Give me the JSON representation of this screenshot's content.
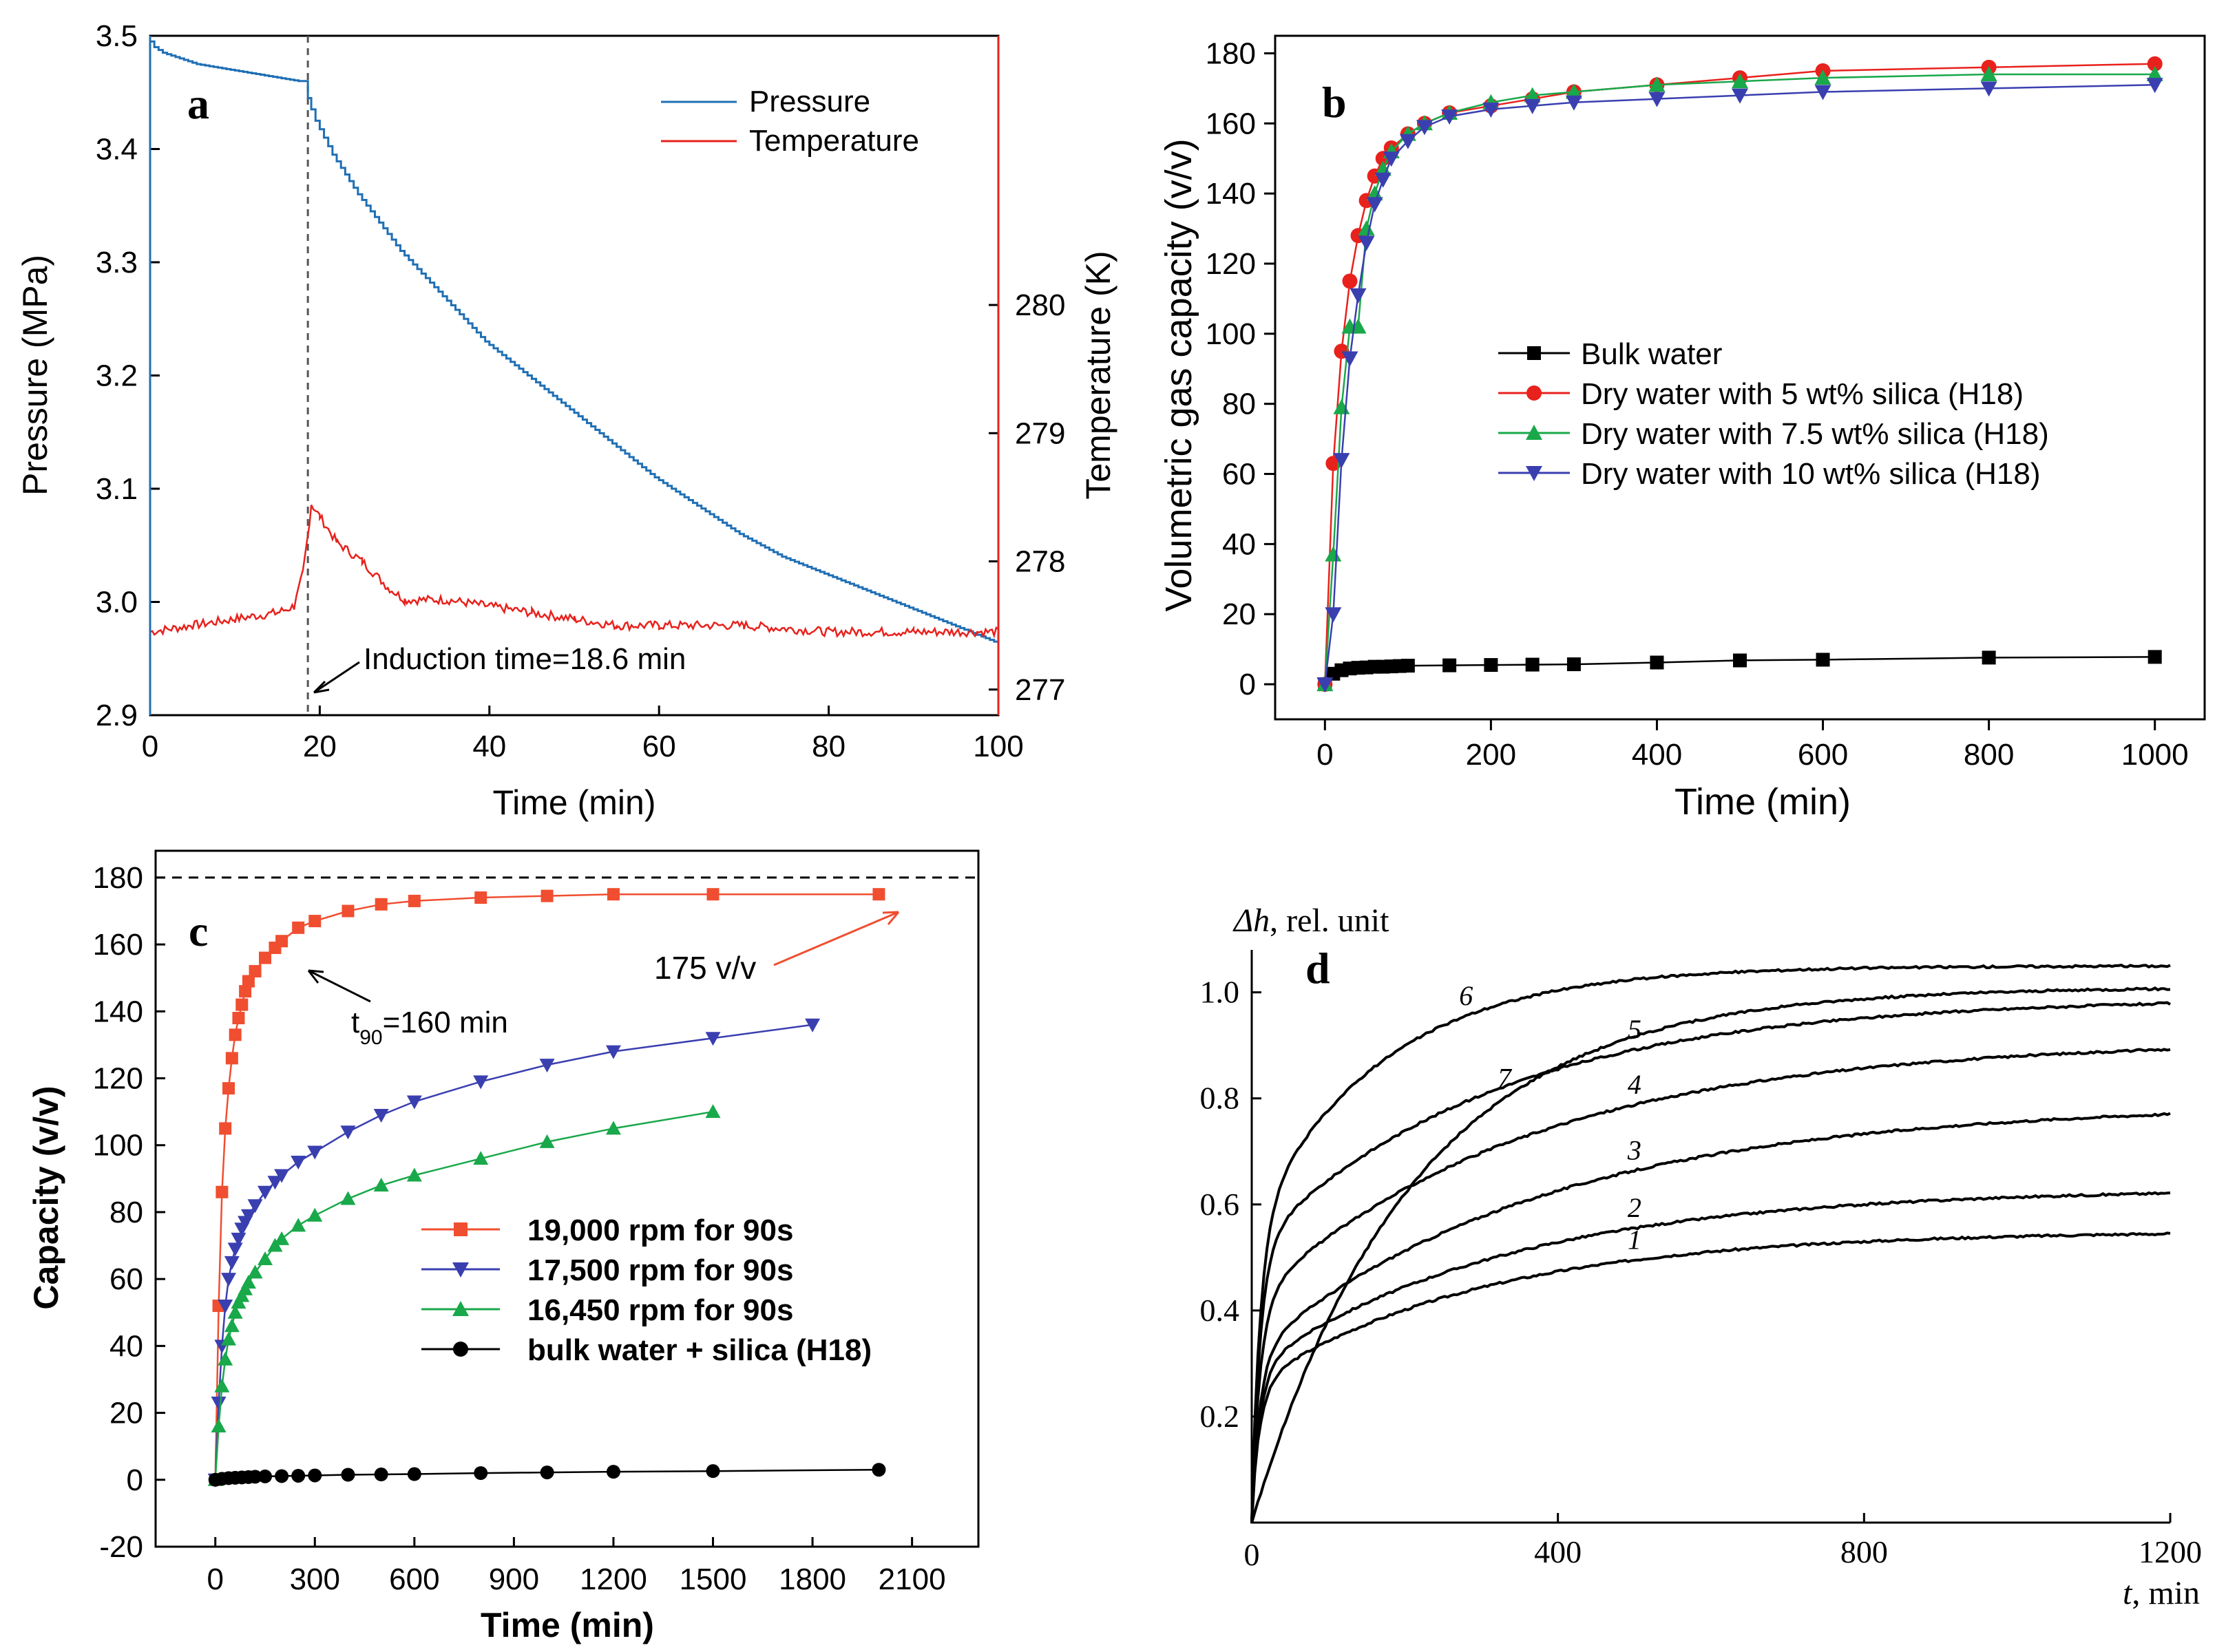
{
  "colors": {
    "blue": "#1f6fb4",
    "red": "#e8211c",
    "green": "#19a84a",
    "indigo": "#3a3fb0",
    "orange": "#f04e30",
    "black": "#000000"
  },
  "chart_data": [
    {
      "type": "line",
      "panel": "a",
      "xlabel": "Time (min)",
      "ylabel": "Pressure (MPa)",
      "y2label": "Temperature (K)",
      "xlim": [
        0,
        100
      ],
      "ylim": [
        2.9,
        3.5
      ],
      "y2lim": [
        276.8,
        282.1
      ],
      "xticks": [
        0,
        20,
        40,
        60,
        80,
        100
      ],
      "yticks": [
        2.9,
        3.0,
        3.1,
        3.2,
        3.3,
        3.4,
        3.5
      ],
      "y2ticks": [
        277,
        278,
        279,
        280
      ],
      "ytick_labels": [
        "2.9",
        "3.0",
        "3.1",
        "3.2",
        "3.3",
        "3.4",
        "3.5"
      ],
      "annotation": "Induction time=18.6 min",
      "induction_time": 18.6,
      "series": [
        {
          "name": "Pressure",
          "axis": "left",
          "color_key": "blue",
          "x": [
            0,
            1,
            2,
            4,
            6,
            10,
            14,
            18,
            18.6,
            19,
            20,
            22,
            25,
            30,
            35,
            40,
            45,
            50,
            55,
            60,
            65,
            70,
            75,
            80,
            85,
            90,
            95,
            100
          ],
          "values": [
            3.5,
            3.49,
            3.485,
            3.48,
            3.475,
            3.47,
            3.465,
            3.46,
            3.46,
            3.445,
            3.425,
            3.395,
            3.36,
            3.31,
            3.27,
            3.23,
            3.2,
            3.17,
            3.14,
            3.11,
            3.085,
            3.06,
            3.04,
            3.025,
            3.01,
            2.995,
            2.98,
            2.965
          ]
        },
        {
          "name": "Temperature",
          "axis": "right",
          "color_key": "red",
          "x": [
            0,
            5,
            10,
            15,
            17,
            18,
            18.6,
            19,
            20,
            22,
            25,
            28,
            30,
            35,
            40,
            45,
            50,
            55,
            60,
            70,
            80,
            90,
            100
          ],
          "values": [
            277.45,
            277.5,
            277.55,
            277.6,
            277.65,
            277.9,
            278.2,
            278.45,
            278.35,
            278.15,
            278.0,
            277.8,
            277.7,
            277.7,
            277.65,
            277.6,
            277.55,
            277.5,
            277.5,
            277.5,
            277.45,
            277.45,
            277.45
          ]
        }
      ]
    },
    {
      "type": "line",
      "panel": "b",
      "xlabel": "Time (min)",
      "ylabel": "Volumetric gas capacity (v/v)",
      "xlim": [
        -60,
        1060
      ],
      "ylim": [
        -10,
        185
      ],
      "xticks": [
        0,
        200,
        400,
        600,
        800,
        1000
      ],
      "yticks": [
        0,
        20,
        40,
        60,
        80,
        100,
        120,
        140,
        160,
        180
      ],
      "legend_position": "center-right",
      "series": [
        {
          "name": "Bulk water",
          "marker": "square",
          "color_key": "black",
          "x": [
            0,
            10,
            20,
            30,
            40,
            50,
            60,
            70,
            80,
            90,
            100,
            150,
            200,
            250,
            300,
            400,
            500,
            600,
            800,
            1000
          ],
          "values": [
            0,
            3,
            4,
            4.5,
            4.7,
            4.8,
            5,
            5,
            5.1,
            5.2,
            5.3,
            5.4,
            5.5,
            5.6,
            5.7,
            6.2,
            6.8,
            7,
            7.6,
            7.8
          ]
        },
        {
          "name": "Dry water with 5 wt% silica (H18)",
          "marker": "circle",
          "color_key": "red",
          "x": [
            0,
            10,
            20,
            30,
            40,
            50,
            60,
            70,
            80,
            100,
            120,
            150,
            200,
            250,
            300,
            400,
            500,
            600,
            800,
            1000
          ],
          "values": [
            0,
            63,
            95,
            115,
            128,
            138,
            145,
            150,
            153,
            157,
            160,
            163,
            165,
            167,
            169,
            171,
            173,
            175,
            176,
            177
          ]
        },
        {
          "name": "Dry water with 7.5 wt% silica (H18)",
          "marker": "triangle-up",
          "color_key": "green",
          "x": [
            0,
            10,
            20,
            30,
            40,
            50,
            60,
            70,
            80,
            100,
            120,
            150,
            200,
            250,
            300,
            400,
            500,
            600,
            800,
            1000
          ],
          "values": [
            0,
            37,
            79,
            102,
            102,
            130,
            140,
            147,
            152,
            157,
            160,
            163,
            166,
            168,
            169,
            171,
            172,
            173,
            174,
            174
          ]
        },
        {
          "name": "Dry water with 10 wt% silica (H18)",
          "marker": "triangle-down",
          "color_key": "indigo",
          "x": [
            0,
            10,
            20,
            30,
            40,
            50,
            60,
            70,
            80,
            100,
            120,
            150,
            200,
            250,
            300,
            400,
            500,
            600,
            800,
            1000
          ],
          "values": [
            0,
            20,
            64,
            93,
            111,
            126,
            137,
            144,
            150,
            155,
            159,
            162,
            164,
            165,
            166,
            167,
            168,
            169,
            170,
            171
          ]
        }
      ]
    },
    {
      "type": "line",
      "panel": "c",
      "xlabel": "Time (min)",
      "ylabel": "Capacity (v/v)",
      "xlim": [
        -180,
        2300
      ],
      "ylim": [
        -20,
        188
      ],
      "xticks": [
        0,
        300,
        600,
        900,
        1200,
        1500,
        1800,
        2100
      ],
      "yticks": [
        -20,
        0,
        20,
        40,
        60,
        80,
        100,
        120,
        140,
        160,
        180
      ],
      "reference_line": 180,
      "annotations": [
        {
          "text_main": "t",
          "text_sub": "90",
          "text_rest": "=160 min",
          "x": 160,
          "y": 155
        },
        {
          "text": "175 v/v",
          "x": 2000,
          "y": 175
        }
      ],
      "legend_position": "bottom-right",
      "series": [
        {
          "name": "19,000 rpm for 90s",
          "marker": "square",
          "color_key": "orange",
          "x": [
            0,
            10,
            20,
            30,
            40,
            50,
            60,
            70,
            80,
            90,
            100,
            120,
            150,
            180,
            200,
            250,
            300,
            400,
            500,
            600,
            800,
            1000,
            1200,
            1500,
            2000
          ],
          "values": [
            0,
            52,
            86,
            105,
            117,
            126,
            133,
            138,
            142,
            146,
            149,
            152,
            156,
            159,
            161,
            165,
            167,
            170,
            172,
            173,
            174,
            174.5,
            175,
            175,
            175
          ]
        },
        {
          "name": "17,500 rpm for 90s",
          "marker": "triangle-down",
          "color_key": "indigo",
          "x": [
            0,
            10,
            20,
            30,
            40,
            50,
            60,
            70,
            80,
            90,
            100,
            120,
            150,
            180,
            200,
            250,
            300,
            400,
            500,
            600,
            800,
            1000,
            1200,
            1500,
            1800
          ],
          "values": [
            0,
            23,
            40,
            52,
            60,
            65,
            69,
            72,
            75,
            77,
            79,
            82,
            86,
            89,
            91,
            95,
            98,
            104,
            109,
            113,
            119,
            124,
            128,
            132,
            136
          ]
        },
        {
          "name": "16,450 rpm for 90s",
          "marker": "triangle-up",
          "color_key": "green",
          "x": [
            0,
            10,
            20,
            30,
            40,
            50,
            60,
            70,
            80,
            90,
            100,
            120,
            150,
            180,
            200,
            250,
            300,
            400,
            500,
            600,
            800,
            1000,
            1200,
            1500
          ],
          "values": [
            0,
            16,
            28,
            36,
            42,
            46,
            50,
            53,
            55,
            57,
            59,
            62,
            66,
            70,
            72,
            76,
            79,
            84,
            88,
            91,
            96,
            101,
            105,
            110
          ]
        },
        {
          "name": "bulk water + silica (H18)",
          "marker": "circle",
          "color_key": "black",
          "x": [
            0,
            20,
            40,
            60,
            80,
            100,
            120,
            150,
            200,
            250,
            300,
            400,
            500,
            600,
            800,
            1000,
            1200,
            1500,
            2000
          ],
          "values": [
            0,
            0.3,
            0.5,
            0.6,
            0.7,
            0.8,
            0.9,
            1,
            1.1,
            1.2,
            1.3,
            1.5,
            1.6,
            1.7,
            2,
            2.2,
            2.4,
            2.6,
            3
          ]
        }
      ]
    },
    {
      "type": "line",
      "panel": "d",
      "ylabel_main": "Δh",
      "ylabel_rest": ", rel. unit",
      "xlabel_main": "t",
      "xlabel_rest": ", min",
      "xlim": [
        0,
        1200
      ],
      "ylim": [
        0,
        1.08
      ],
      "xticks": [
        0,
        400,
        800,
        1200
      ],
      "yticks": [
        0.2,
        0.4,
        0.6,
        0.8,
        1.0
      ],
      "ytick_labels": [
        "0.2",
        "0.4",
        "0.6",
        "0.8",
        "1.0"
      ],
      "series": [
        {
          "name": "1",
          "a": 0.22,
          "b": 0.29,
          "tau": 300,
          "label_at": 500
        },
        {
          "name": "2",
          "a": 0.25,
          "b": 0.34,
          "tau": 330,
          "label_at": 500
        },
        {
          "name": "3",
          "a": 0.28,
          "b": 0.47,
          "tau": 380,
          "label_at": 500
        },
        {
          "name": "4",
          "a": 0.38,
          "b": 0.49,
          "tau": 360,
          "label_at": 500
        },
        {
          "name": "5",
          "a": 0.48,
          "b": 0.47,
          "tau": 320,
          "label_at": 500
        },
        {
          "name": "6",
          "a": 0.52,
          "b": 0.49,
          "tau": 170,
          "label_at": 280
        },
        {
          "name": "7",
          "a": 0.0,
          "b": 1.01,
          "tau": 210,
          "label_at": 330
        }
      ]
    }
  ]
}
